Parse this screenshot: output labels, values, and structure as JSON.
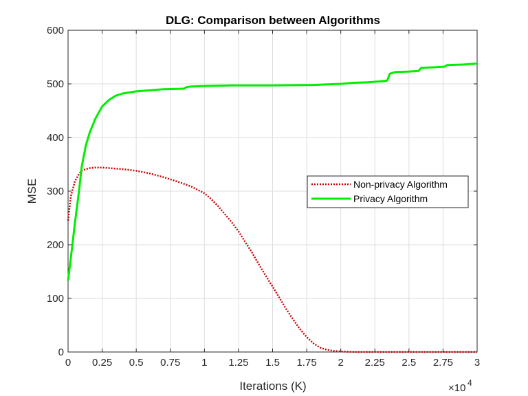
{
  "chart_data": {
    "type": "line",
    "title": "DLG: Comparison between Algorithms",
    "xlabel": "Iterations (K)",
    "ylabel": "MSE",
    "x_exponent_label": "×10",
    "x_exponent_power": "4",
    "xlim": [
      0,
      3
    ],
    "ylim": [
      0,
      600
    ],
    "xticks": [
      0,
      0.25,
      0.5,
      0.75,
      1,
      1.25,
      1.5,
      1.75,
      2,
      2.25,
      2.5,
      2.75,
      3
    ],
    "xtick_labels": [
      "0",
      "0.25",
      "0.5",
      "0.75",
      "1",
      "1.25",
      "1.5",
      "1.75",
      "2",
      "2.25",
      "2.5",
      "2.75",
      "3"
    ],
    "yticks": [
      0,
      100,
      200,
      300,
      400,
      500,
      600
    ],
    "ytick_labels": [
      "0",
      "100",
      "200",
      "300",
      "400",
      "500",
      "600"
    ],
    "grid": true,
    "legend_position": "right",
    "series": [
      {
        "name": "Non-privacy Algorithm",
        "color": "#cc0000",
        "style": "dotted",
        "x": [
          0,
          0.02,
          0.05,
          0.08,
          0.1,
          0.13,
          0.16,
          0.2,
          0.25,
          0.3,
          0.4,
          0.5,
          0.6,
          0.7,
          0.8,
          0.9,
          1.0,
          1.05,
          1.1,
          1.15,
          1.2,
          1.25,
          1.3,
          1.35,
          1.4,
          1.45,
          1.5,
          1.55,
          1.6,
          1.65,
          1.7,
          1.75,
          1.8,
          1.85,
          1.9,
          1.95,
          2.0,
          2.05,
          2.1,
          2.2,
          2.4,
          2.6,
          2.8,
          3.0
        ],
        "y": [
          245,
          290,
          318,
          332,
          338,
          341,
          343,
          344,
          344,
          343,
          341,
          338,
          333,
          326,
          318,
          309,
          296,
          285,
          272,
          257,
          242,
          225,
          205,
          185,
          163,
          142,
          122,
          101,
          80,
          61,
          43,
          28,
          16,
          8,
          4,
          2,
          1,
          0.5,
          0,
          0,
          0,
          0,
          0,
          0
        ]
      },
      {
        "name": "Privacy Algorithm",
        "color": "#00ee00",
        "style": "solid",
        "x": [
          0,
          0.02,
          0.05,
          0.08,
          0.1,
          0.13,
          0.16,
          0.2,
          0.25,
          0.3,
          0.35,
          0.4,
          0.45,
          0.5,
          0.6,
          0.7,
          0.85,
          0.87,
          0.9,
          1.0,
          1.2,
          1.5,
          1.8,
          1.9,
          2.0,
          2.1,
          2.2,
          2.3,
          2.34,
          2.36,
          2.4,
          2.5,
          2.57,
          2.59,
          2.7,
          2.76,
          2.78,
          2.9,
          3.0
        ],
        "y": [
          133,
          175,
          240,
          300,
          345,
          385,
          410,
          435,
          458,
          470,
          478,
          482,
          484,
          486,
          488,
          490,
          491,
          494,
          495,
          496,
          497,
          497,
          498,
          499,
          500,
          502,
          503,
          505,
          506,
          519,
          522,
          523,
          524,
          530,
          531,
          532,
          535,
          536,
          538
        ]
      }
    ]
  }
}
